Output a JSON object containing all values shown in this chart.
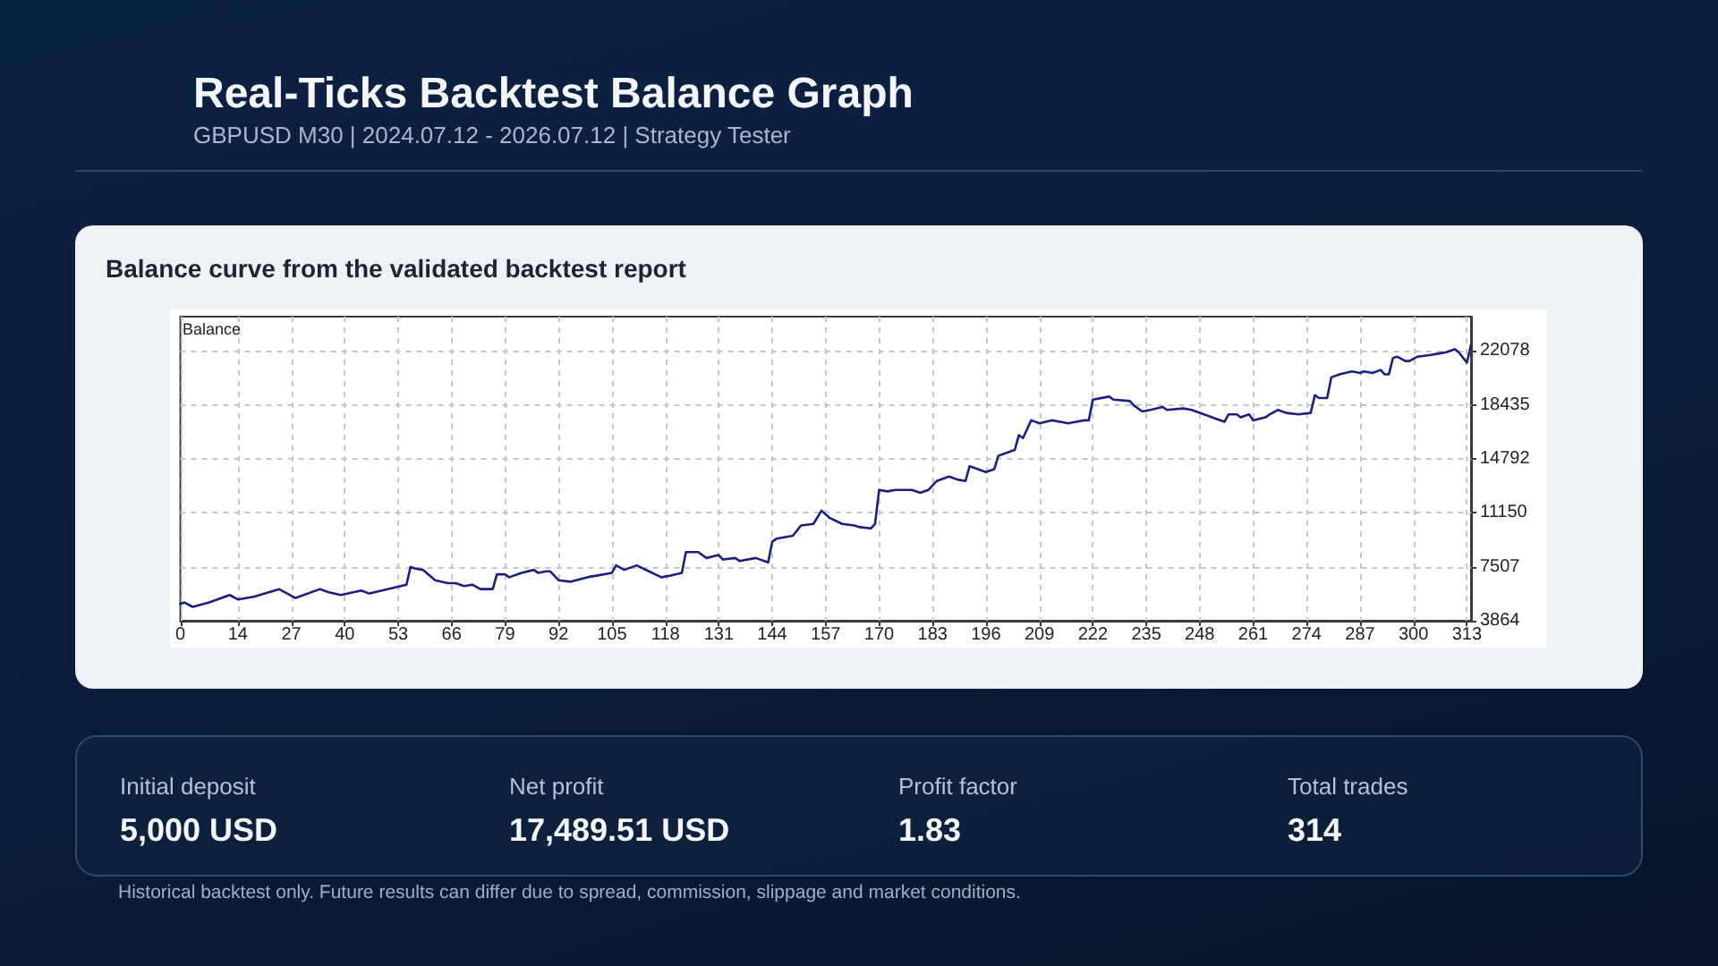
{
  "chart_data": {
    "type": "line",
    "title": "Real-Ticks Backtest Balance Graph",
    "subtitle": "GBPUSD M30 | 2024.07.12 - 2026.07.12 | Strategy Tester",
    "annotations": [
      "Balance curve from the validated backtest report",
      "Balance",
      "Initial deposit",
      "5,000 USD",
      "Net profit",
      "17,489.51 USD",
      "Profit factor",
      "1.83",
      "Total trades",
      "314",
      "Historical backtest only. Future results can differ due to spread, commission, slippage and market conditions."
    ],
    "x": [
      0,
      1,
      3,
      7,
      12,
      14,
      18,
      24,
      26,
      28,
      34,
      36,
      39,
      44,
      46,
      49,
      55,
      56,
      57,
      59,
      62,
      65,
      67,
      69,
      71,
      73,
      76,
      77,
      79,
      80,
      83,
      86,
      87,
      89,
      90,
      92,
      95,
      99,
      105,
      106,
      108,
      111,
      114,
      117,
      119,
      122,
      123,
      126,
      128,
      131,
      132,
      135,
      136,
      140,
      143,
      144,
      145,
      149,
      151,
      154,
      156,
      158,
      161,
      164,
      165,
      168,
      169,
      170,
      172,
      174,
      178,
      180,
      182,
      184,
      187,
      189,
      191,
      192,
      194,
      196,
      198,
      199,
      201,
      203,
      204,
      205,
      207,
      209,
      212,
      216,
      218,
      220,
      221,
      222,
      226,
      227,
      231,
      232,
      234,
      236,
      239,
      240,
      244,
      246,
      249,
      252,
      254,
      255,
      257,
      258,
      260,
      261,
      264,
      265,
      267,
      269,
      272,
      275,
      276,
      277,
      279,
      280,
      282,
      285,
      287,
      288,
      290,
      292,
      293,
      294,
      295,
      296,
      298,
      299,
      301,
      304,
      306,
      308,
      310,
      311,
      313,
      314
    ],
    "series": [
      {
        "color": "#1c1f7e",
        "values": [
          5000,
          5100,
          4800,
          5100,
          5600,
          5300,
          5500,
          6000,
          5700,
          5400,
          6000,
          5800,
          5600,
          5900,
          5700,
          5900,
          6300,
          7500,
          7400,
          7300,
          6600,
          6400,
          6400,
          6200,
          6300,
          6000,
          6000,
          7000,
          7000,
          6800,
          7100,
          7300,
          7100,
          7200,
          7200,
          6600,
          6500,
          6800,
          7100,
          7600,
          7300,
          7600,
          7200,
          6800,
          6900,
          7100,
          8500,
          8500,
          8100,
          8300,
          8000,
          8100,
          7900,
          8100,
          7800,
          9200,
          9400,
          9600,
          10300,
          10400,
          11300,
          10800,
          10400,
          10300,
          10200,
          10100,
          10400,
          12700,
          12600,
          12700,
          12700,
          12500,
          12700,
          13300,
          13600,
          13400,
          13300,
          14300,
          14100,
          13900,
          14100,
          15000,
          15200,
          15400,
          16400,
          16200,
          17400,
          17200,
          17400,
          17200,
          17300,
          17400,
          17400,
          18800,
          19000,
          18800,
          18700,
          18400,
          18000,
          18100,
          18300,
          18100,
          18200,
          18100,
          17800,
          17500,
          17300,
          17800,
          17800,
          17600,
          17800,
          17400,
          17600,
          17800,
          18100,
          17900,
          17800,
          17900,
          19100,
          18900,
          18900,
          20300,
          20500,
          20700,
          20600,
          20700,
          20600,
          20800,
          20500,
          20500,
          21600,
          21700,
          21400,
          21400,
          21700,
          21800,
          21900,
          22000,
          22200,
          22000,
          21300,
          22500
        ]
      }
    ],
    "xlim": [
      0,
      314
    ],
    "xticks": [
      0,
      14,
      27,
      40,
      53,
      66,
      79,
      92,
      105,
      118,
      131,
      144,
      157,
      170,
      183,
      196,
      209,
      222,
      235,
      248,
      261,
      274,
      287,
      300,
      313
    ],
    "ylim": [
      3864,
      24400
    ],
    "yticks": [
      3864,
      7507,
      11150,
      14792,
      18435,
      22078
    ],
    "grid": true
  }
}
